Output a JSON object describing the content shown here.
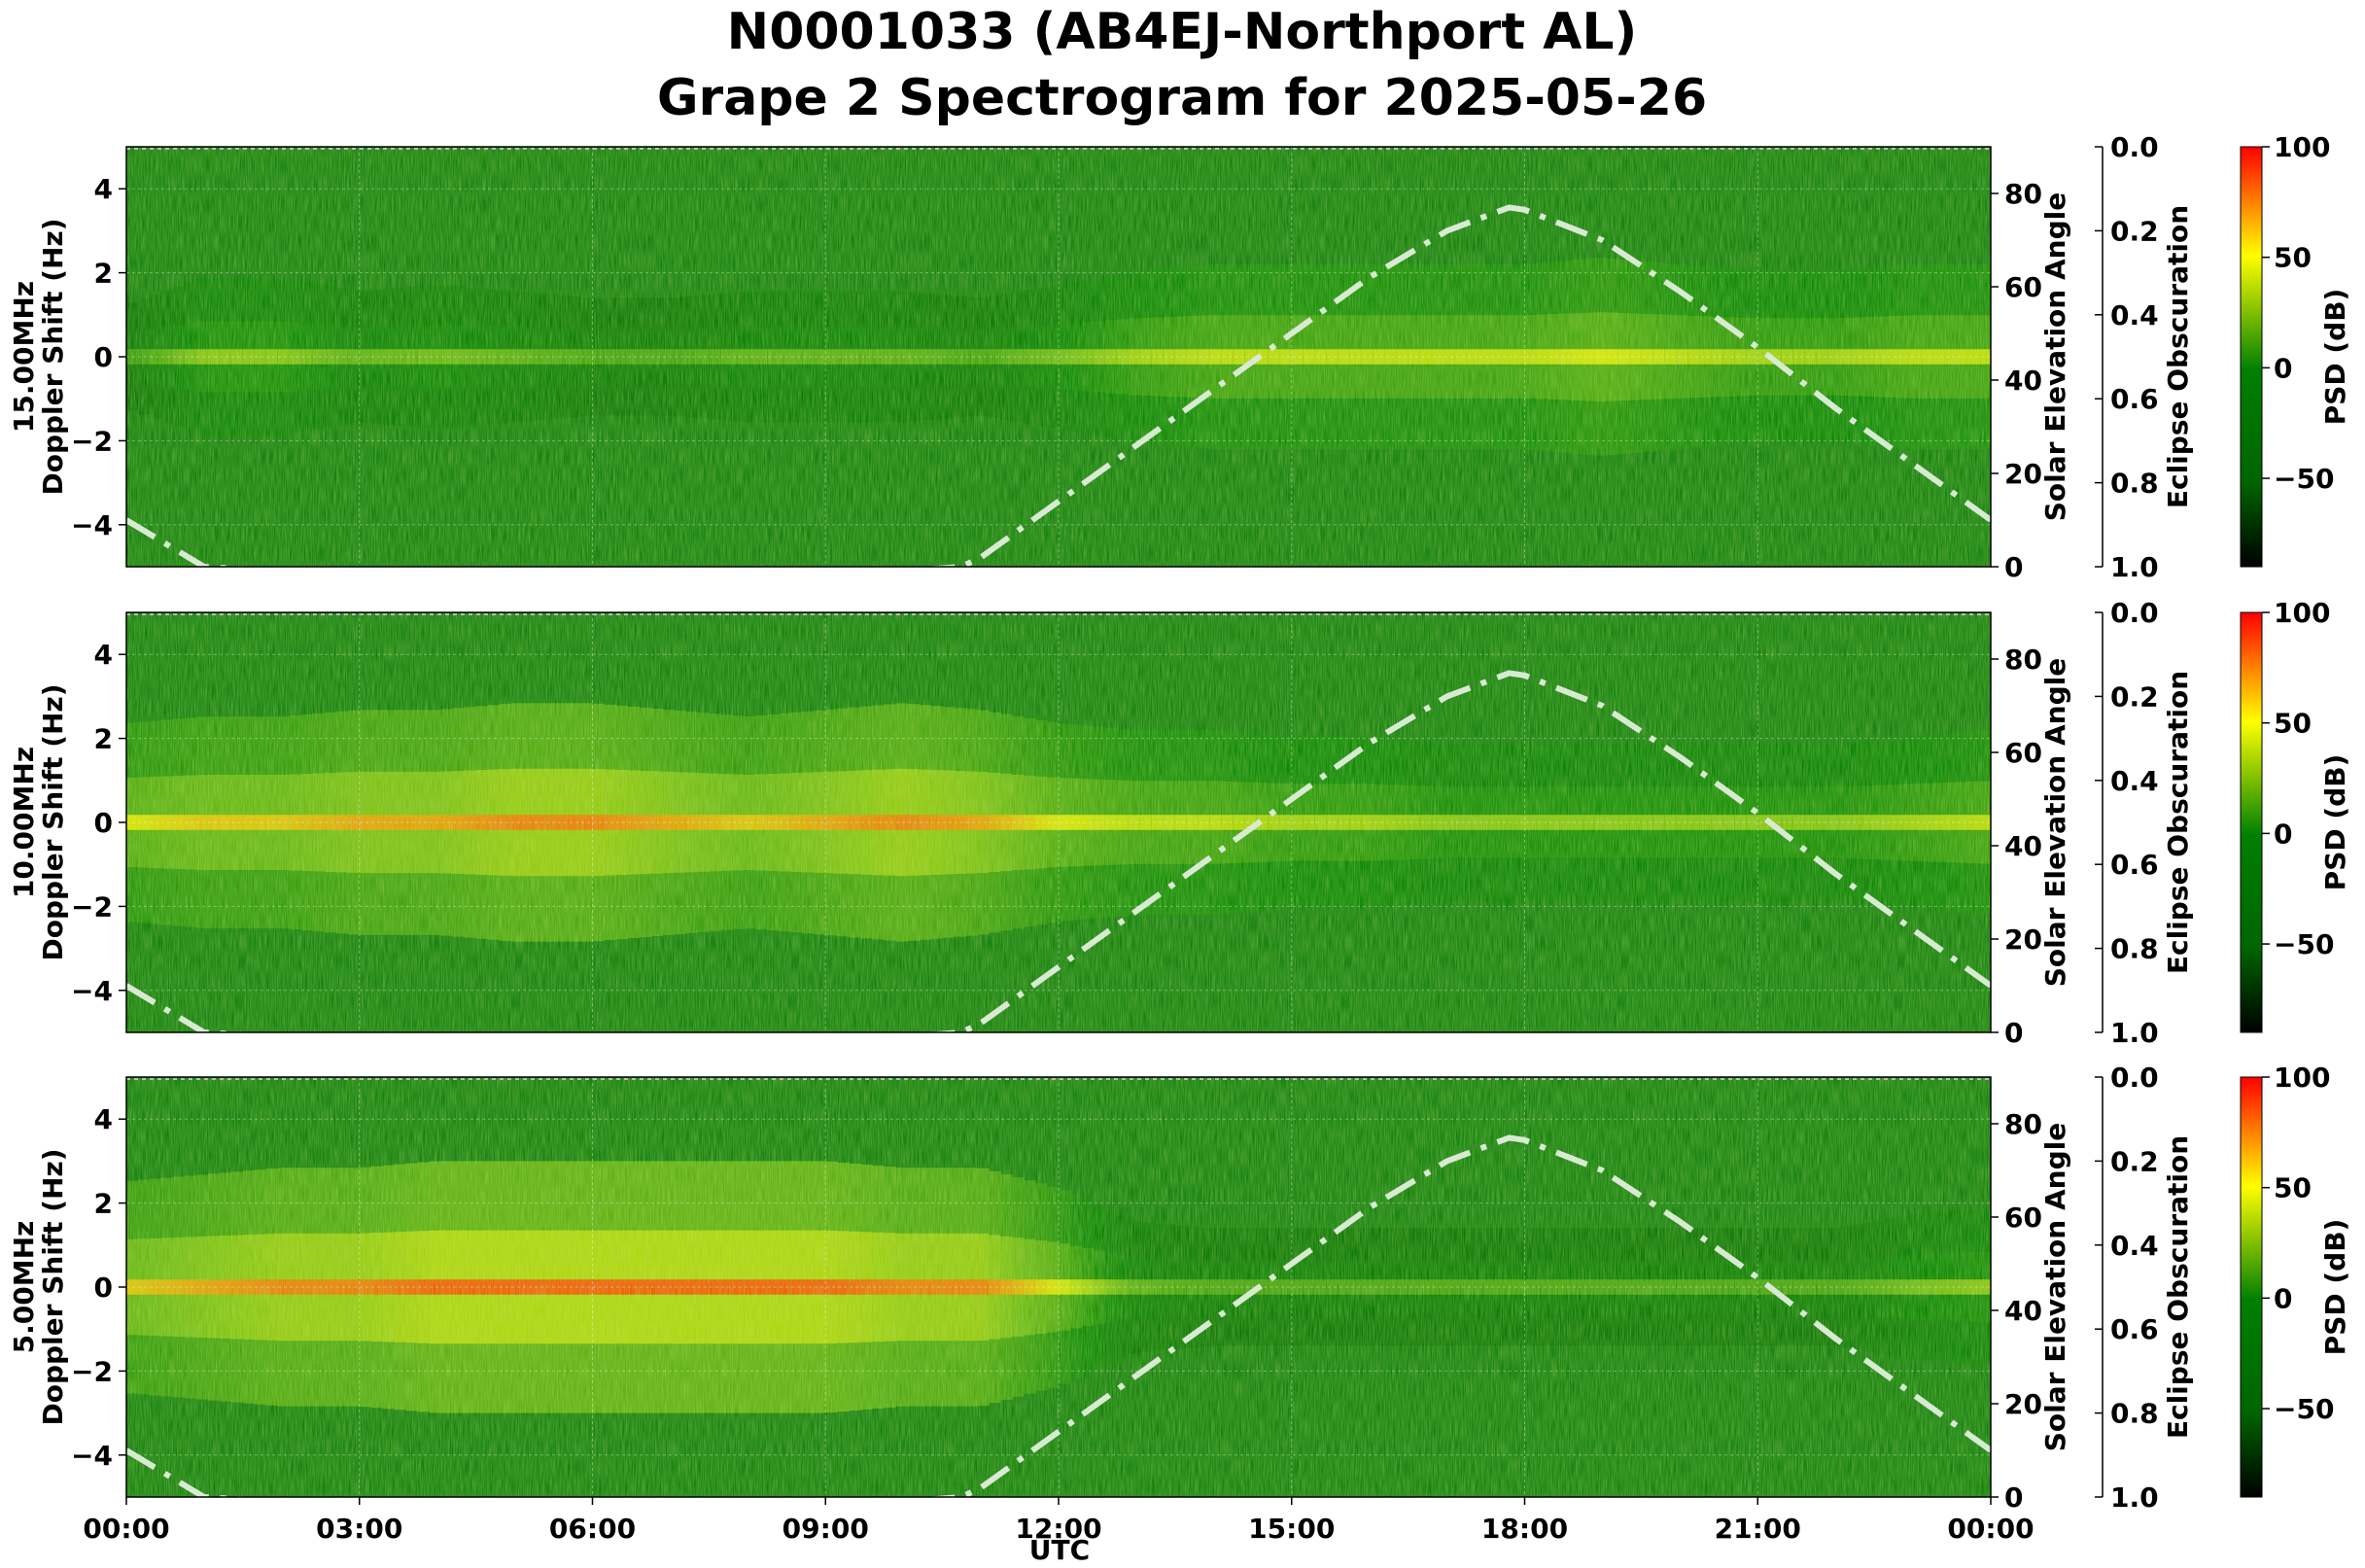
{
  "title_line1": "N0001033 (AB4EJ-Northport AL)",
  "title_line2": "Grape 2 Spectrogram for 2025-05-26",
  "colors": {
    "sun_curve": "#d9ead3",
    "colormap": [
      "#000000",
      "#006400",
      "#008000",
      "#ffff00",
      "#ff0000"
    ]
  },
  "axes": {
    "x_label": "UTC",
    "x_ticks": [
      "00:00",
      "03:00",
      "06:00",
      "09:00",
      "12:00",
      "15:00",
      "18:00",
      "21:00",
      "00:00"
    ],
    "y_ticks": [
      "4",
      "2",
      "0",
      "−2",
      "−4"
    ],
    "right_label": "Solar Elevation Angle",
    "right_ticks": [
      "80",
      "60",
      "40",
      "20",
      "0"
    ],
    "eclipse_label": "Eclipse Obscuration",
    "eclipse_ticks": [
      "0.0",
      "0.2",
      "0.4",
      "0.6",
      "0.8",
      "1.0"
    ],
    "cbar_label": "PSD (dB)",
    "cbar_ticks": [
      "100",
      "50",
      "0",
      "−50"
    ]
  },
  "chart_data": {
    "type": "heatmap",
    "x_range_hours": [
      0,
      24
    ],
    "y_range_hz": [
      -5,
      5
    ],
    "right_range_deg": [
      0,
      90
    ],
    "eclipse_range": [
      0,
      1
    ],
    "psd_range_db": [
      -90,
      100
    ],
    "solar_elevation": {
      "name": "Solar Elevation Angle",
      "x_hours": [
        0,
        1,
        2,
        3,
        4,
        5,
        6,
        7,
        8,
        9,
        10,
        10.75,
        11,
        12,
        13,
        14,
        15,
        16,
        17,
        17.8,
        18,
        19,
        20,
        21,
        22,
        23,
        24
      ],
      "y_deg": [
        10,
        0,
        -1,
        -1,
        -1,
        -1,
        -1,
        -1,
        -1,
        -1,
        -1,
        0,
        2,
        14,
        26,
        38,
        50,
        62,
        72,
        77,
        76.5,
        70,
        59,
        47,
        34,
        22,
        10
      ]
    },
    "panels": [
      {
        "ylabel_line1": "15.00MHz",
        "ylabel_line2": "Doppler Shift (Hz)",
        "profile": [
          [
            0,
            0.2
          ],
          [
            1,
            0.4
          ],
          [
            2,
            0.4
          ],
          [
            3,
            0.3
          ],
          [
            4,
            0.35
          ],
          [
            5,
            0.3
          ],
          [
            6,
            0.25
          ],
          [
            7,
            0.25
          ],
          [
            8,
            0.3
          ],
          [
            9,
            0.3
          ],
          [
            10,
            0.3
          ],
          [
            11,
            0.25
          ],
          [
            12,
            0.35
          ],
          [
            13,
            0.45
          ],
          [
            14,
            0.5
          ],
          [
            15,
            0.5
          ],
          [
            16,
            0.5
          ],
          [
            17,
            0.5
          ],
          [
            18,
            0.5
          ],
          [
            19,
            0.55
          ],
          [
            20,
            0.5
          ],
          [
            21,
            0.45
          ],
          [
            22,
            0.45
          ],
          [
            23,
            0.5
          ],
          [
            24,
            0.5
          ]
        ]
      },
      {
        "ylabel_line1": "10.00MHz",
        "ylabel_line2": "Doppler Shift (Hz)",
        "profile": [
          [
            0,
            0.55
          ],
          [
            1,
            0.6
          ],
          [
            2,
            0.6
          ],
          [
            3,
            0.65
          ],
          [
            4,
            0.65
          ],
          [
            5,
            0.7
          ],
          [
            6,
            0.7
          ],
          [
            7,
            0.65
          ],
          [
            8,
            0.6
          ],
          [
            9,
            0.65
          ],
          [
            10,
            0.7
          ],
          [
            11,
            0.65
          ],
          [
            12,
            0.55
          ],
          [
            13,
            0.5
          ],
          [
            14,
            0.5
          ],
          [
            15,
            0.45
          ],
          [
            16,
            0.45
          ],
          [
            17,
            0.4
          ],
          [
            18,
            0.4
          ],
          [
            19,
            0.4
          ],
          [
            20,
            0.4
          ],
          [
            21,
            0.4
          ],
          [
            22,
            0.4
          ],
          [
            23,
            0.45
          ],
          [
            24,
            0.5
          ]
        ]
      },
      {
        "ylabel_line1": "5.00MHz",
        "ylabel_line2": "Doppler Shift (Hz)",
        "profile": [
          [
            0,
            0.6
          ],
          [
            1,
            0.65
          ],
          [
            2,
            0.7
          ],
          [
            3,
            0.7
          ],
          [
            4,
            0.75
          ],
          [
            5,
            0.75
          ],
          [
            6,
            0.75
          ],
          [
            7,
            0.75
          ],
          [
            8,
            0.75
          ],
          [
            9,
            0.75
          ],
          [
            10,
            0.7
          ],
          [
            11,
            0.7
          ],
          [
            12,
            0.55
          ],
          [
            13,
            0.3
          ],
          [
            14,
            0.25
          ],
          [
            15,
            0.25
          ],
          [
            16,
            0.25
          ],
          [
            17,
            0.25
          ],
          [
            18,
            0.25
          ],
          [
            19,
            0.25
          ],
          [
            20,
            0.25
          ],
          [
            21,
            0.25
          ],
          [
            22,
            0.25
          ],
          [
            23,
            0.35
          ],
          [
            24,
            0.4
          ]
        ]
      }
    ]
  }
}
